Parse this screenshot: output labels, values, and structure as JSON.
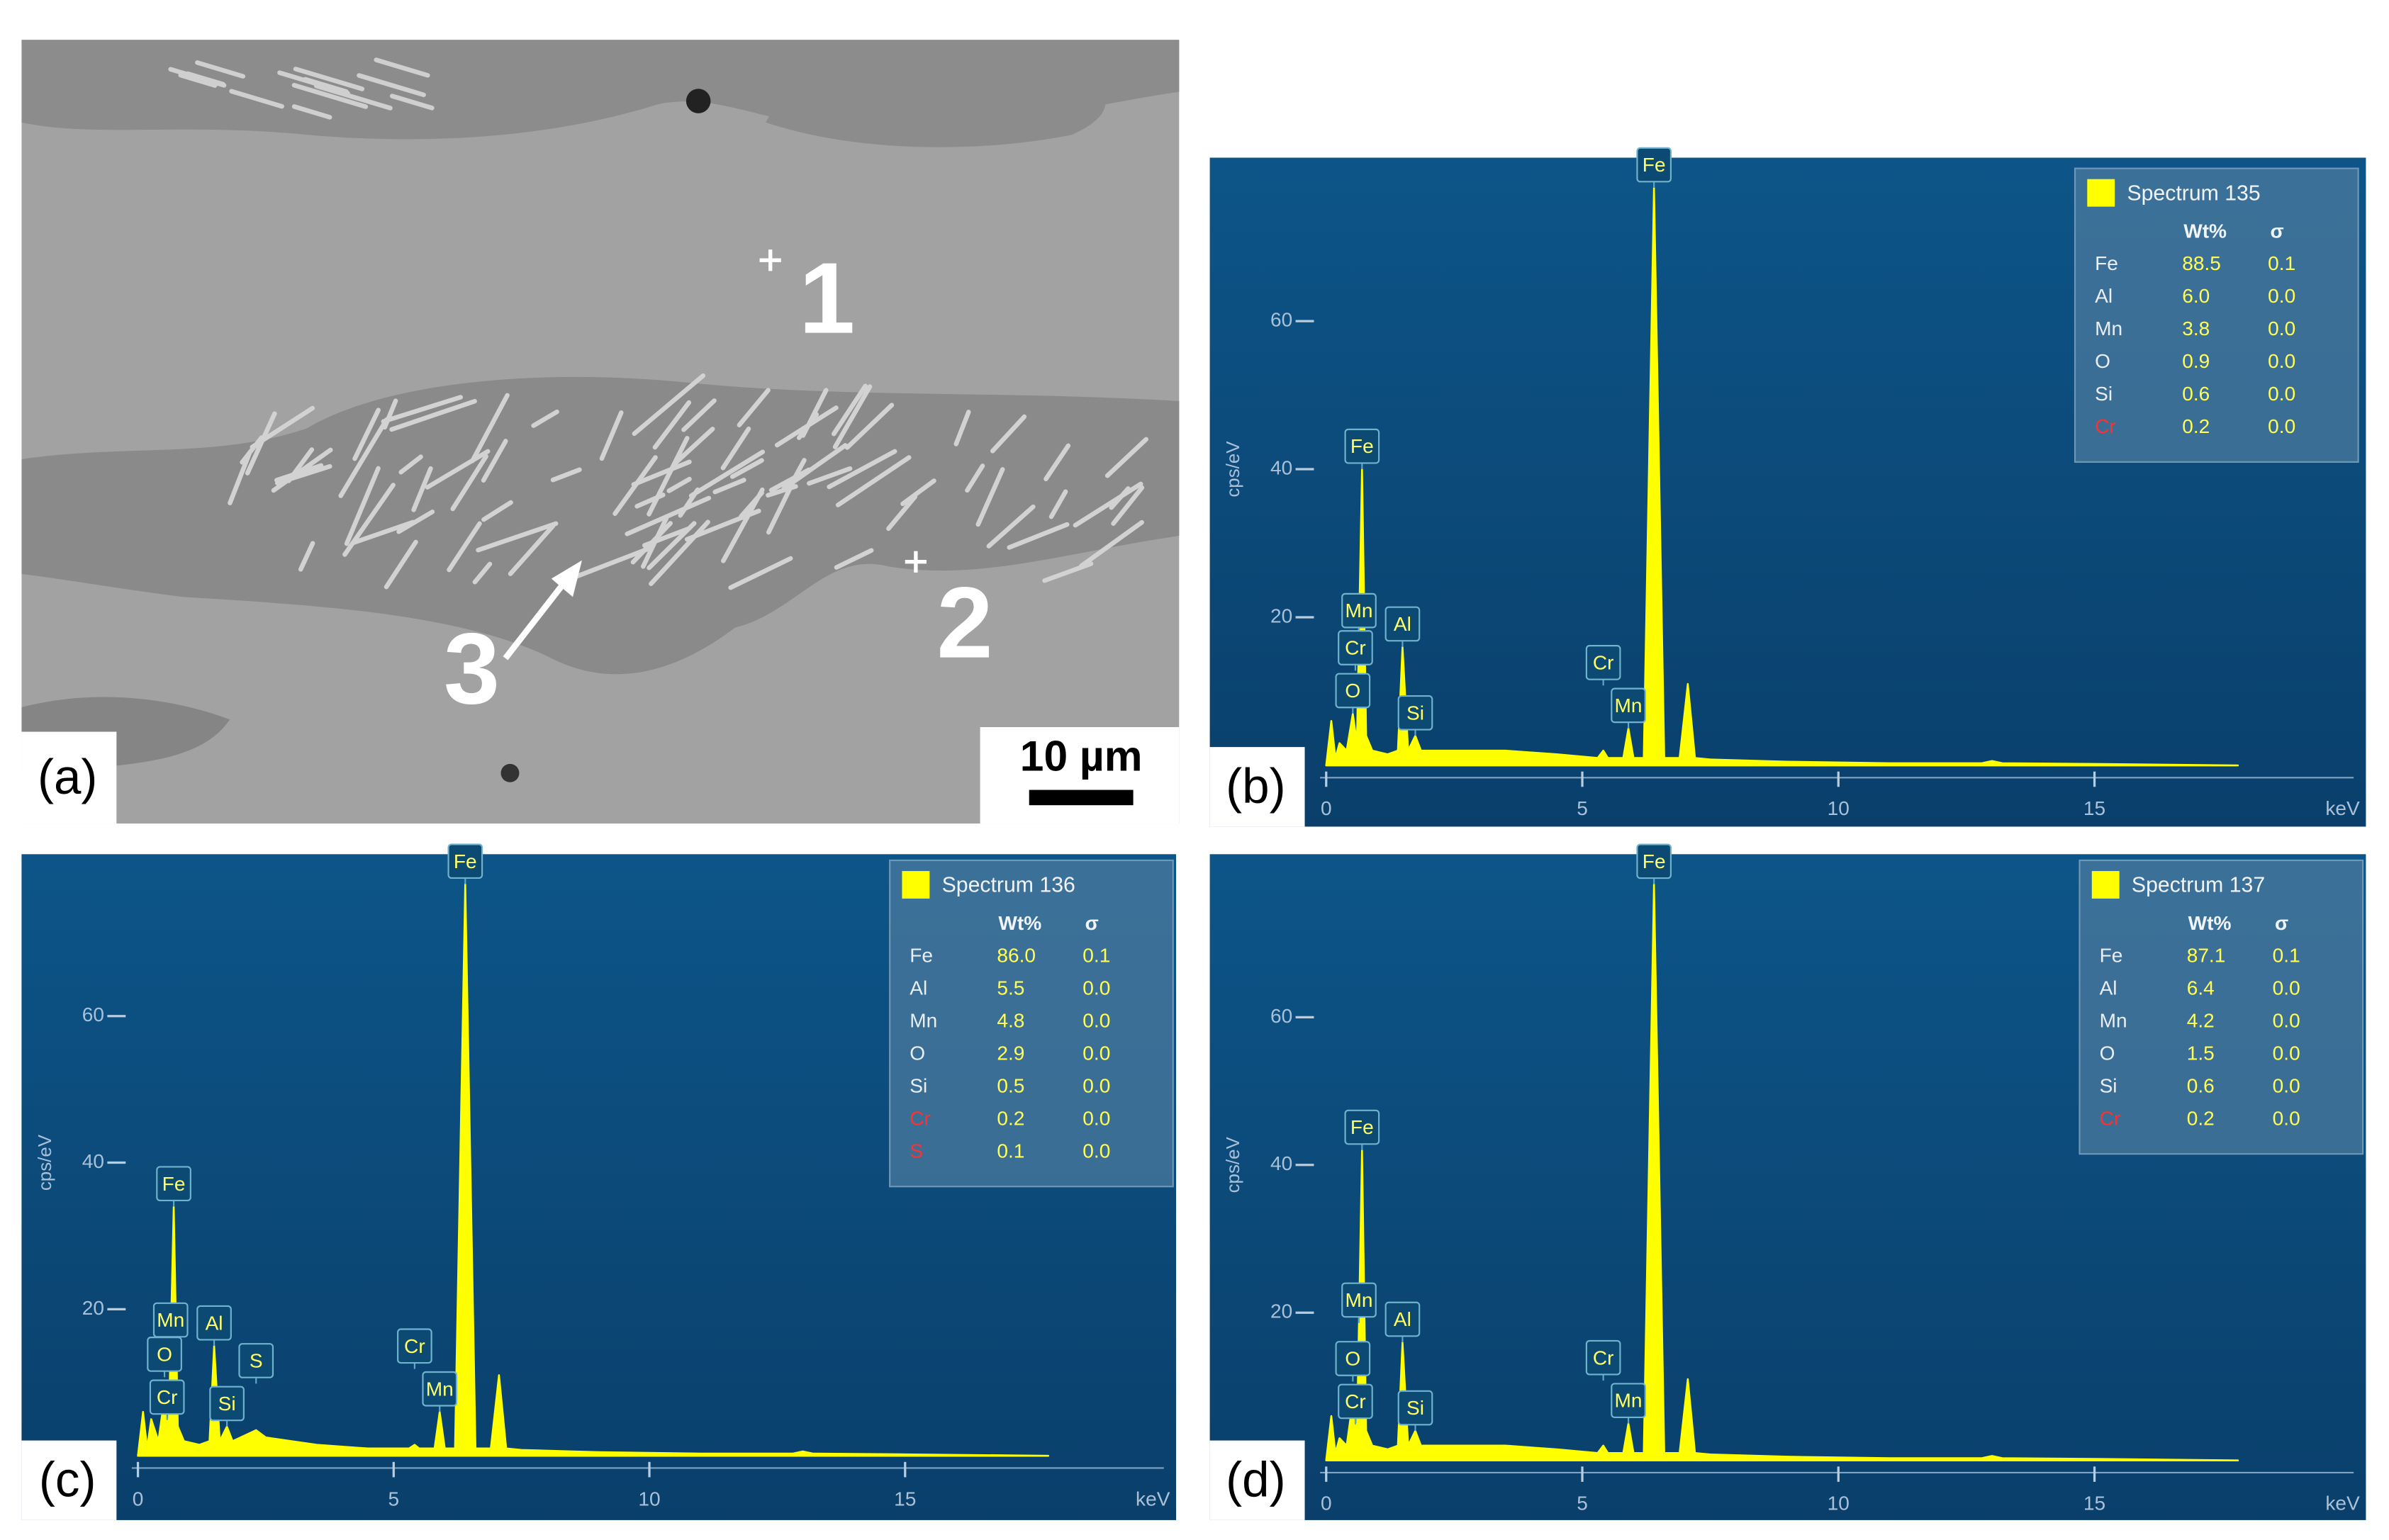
{
  "micrograph": {
    "panel_label": "(a)",
    "scale_bar": "10 µm",
    "points": [
      "1",
      "2",
      "3"
    ]
  },
  "chart_data": [
    {
      "type": "area",
      "panel_label": "(b)",
      "x_label": "keV",
      "y_label": "cps/eV",
      "x": [
        0,
        0.1,
        0.18,
        0.26,
        0.4,
        0.52,
        0.6,
        0.7,
        0.78,
        0.9,
        1.2,
        1.4,
        1.49,
        1.6,
        1.74,
        1.85,
        2.31,
        2.5,
        3.5,
        4.5,
        5.3,
        5.41,
        5.5,
        5.8,
        5.9,
        6.0,
        6.2,
        6.4,
        6.6,
        6.9,
        7.06,
        7.2,
        7.5,
        9,
        11,
        12.8,
        13,
        13.2,
        15,
        17.8
      ],
      "series": [
        {
          "name": "Spectrum 135",
          "color": "#ffff00",
          "values": [
            0,
            6,
            1,
            3,
            2,
            7,
            3,
            40,
            4,
            2,
            1.5,
            2,
            16,
            2,
            4,
            2,
            2,
            2,
            2,
            1.5,
            1,
            2,
            1,
            1,
            5,
            1,
            1,
            78,
            1,
            1,
            11,
            1,
            0.8,
            0.5,
            0.3,
            0.3,
            0.6,
            0.3,
            0.2,
            0
          ]
        }
      ],
      "xlim": [
        0,
        20
      ],
      "xticks": [
        0,
        5,
        10,
        15
      ],
      "ylim": [
        0,
        80
      ],
      "yticks": [
        20,
        40,
        60
      ],
      "peak_labels": [
        {
          "text": "Fe",
          "x": 6.4
        },
        {
          "text": "Fe",
          "x": 0.7
        },
        {
          "text": "Al",
          "x": 1.49
        },
        {
          "text": "Si",
          "x": 1.74
        },
        {
          "text": "Mn",
          "x": 5.9
        },
        {
          "text": "Cr",
          "x": 5.41
        },
        {
          "text": "Mn",
          "x": 0.64
        },
        {
          "text": "O",
          "x": 0.52
        },
        {
          "text": "Cr",
          "x": 0.57
        }
      ],
      "table": {
        "headers": [
          "Wt%",
          "σ"
        ],
        "rows": [
          {
            "element": "Fe",
            "wt": "88.5",
            "sigma": "0.1",
            "color": "#e8eef4"
          },
          {
            "element": "Al",
            "wt": "6.0",
            "sigma": "0.0",
            "color": "#e8eef4"
          },
          {
            "element": "Mn",
            "wt": "3.8",
            "sigma": "0.0",
            "color": "#e8eef4"
          },
          {
            "element": "O",
            "wt": "0.9",
            "sigma": "0.0",
            "color": "#e8eef4"
          },
          {
            "element": "Si",
            "wt": "0.6",
            "sigma": "0.0",
            "color": "#e8eef4"
          },
          {
            "element": "Cr",
            "wt": "0.2",
            "sigma": "0.0",
            "color": "#ff3030"
          }
        ]
      }
    },
    {
      "type": "area",
      "panel_label": "(c)",
      "x_label": "keV",
      "y_label": "cps/eV",
      "x": [
        0,
        0.1,
        0.18,
        0.26,
        0.4,
        0.52,
        0.6,
        0.7,
        0.78,
        0.9,
        1.2,
        1.4,
        1.49,
        1.6,
        1.74,
        1.85,
        2.31,
        2.5,
        3.5,
        4.5,
        5.3,
        5.41,
        5.5,
        5.8,
        5.9,
        6.0,
        6.2,
        6.4,
        6.6,
        6.9,
        7.06,
        7.2,
        7.5,
        9,
        11,
        12.8,
        13,
        13.2,
        15,
        17.8
      ],
      "series": [
        {
          "name": "Spectrum 136",
          "color": "#ffff00",
          "values": [
            0,
            6,
            1,
            5,
            2,
            8,
            3,
            34,
            4,
            2,
            1.5,
            2,
            15,
            2,
            4,
            2,
            3.5,
            2.5,
            1.5,
            1,
            1,
            1.5,
            1,
            1,
            6,
            1,
            1,
            78,
            1,
            1,
            11,
            1,
            0.8,
            0.5,
            0.3,
            0.3,
            0.6,
            0.3,
            0.2,
            0
          ]
        }
      ],
      "xlim": [
        0,
        20
      ],
      "xticks": [
        0,
        5,
        10,
        15
      ],
      "ylim": [
        0,
        80
      ],
      "yticks": [
        20,
        40,
        60
      ],
      "peak_labels": [
        {
          "text": "Fe",
          "x": 6.4
        },
        {
          "text": "Fe",
          "x": 0.7
        },
        {
          "text": "Al",
          "x": 1.49
        },
        {
          "text": "Si",
          "x": 1.74
        },
        {
          "text": "S",
          "x": 2.31
        },
        {
          "text": "Mn",
          "x": 5.9
        },
        {
          "text": "Cr",
          "x": 5.41
        },
        {
          "text": "Cr",
          "x": 0.57
        },
        {
          "text": "Mn",
          "x": 0.64
        },
        {
          "text": "O",
          "x": 0.52
        }
      ],
      "table": {
        "headers": [
          "Wt%",
          "σ"
        ],
        "rows": [
          {
            "element": "Fe",
            "wt": "86.0",
            "sigma": "0.1",
            "color": "#e8eef4"
          },
          {
            "element": "Al",
            "wt": "5.5",
            "sigma": "0.0",
            "color": "#e8eef4"
          },
          {
            "element": "Mn",
            "wt": "4.8",
            "sigma": "0.0",
            "color": "#e8eef4"
          },
          {
            "element": "O",
            "wt": "2.9",
            "sigma": "0.0",
            "color": "#e8eef4"
          },
          {
            "element": "Si",
            "wt": "0.5",
            "sigma": "0.0",
            "color": "#e8eef4"
          },
          {
            "element": "Cr",
            "wt": "0.2",
            "sigma": "0.0",
            "color": "#ff3030"
          },
          {
            "element": "S",
            "wt": "0.1",
            "sigma": "0.0",
            "color": "#ff3030"
          }
        ]
      }
    },
    {
      "type": "area",
      "panel_label": "(d)",
      "x_label": "keV",
      "y_label": "cps/eV",
      "x": [
        0,
        0.1,
        0.18,
        0.26,
        0.4,
        0.52,
        0.6,
        0.7,
        0.78,
        0.9,
        1.2,
        1.4,
        1.49,
        1.6,
        1.74,
        1.85,
        2.31,
        2.5,
        3.5,
        4.5,
        5.3,
        5.41,
        5.5,
        5.8,
        5.9,
        6.0,
        6.2,
        6.4,
        6.6,
        6.9,
        7.06,
        7.2,
        7.5,
        9,
        11,
        12.8,
        13,
        13.2,
        15,
        17.8
      ],
      "series": [
        {
          "name": "Spectrum 137",
          "color": "#ffff00",
          "values": [
            0,
            6,
            1,
            3,
            2,
            8,
            3,
            42,
            4,
            2,
            1.5,
            2,
            16,
            2,
            4,
            2,
            2,
            2,
            2,
            1.5,
            1,
            2,
            1,
            1,
            5,
            1,
            1,
            78,
            1,
            1,
            11,
            1,
            0.8,
            0.5,
            0.3,
            0.3,
            0.6,
            0.3,
            0.2,
            0
          ]
        }
      ],
      "xlim": [
        0,
        20
      ],
      "xticks": [
        0,
        5,
        10,
        15
      ],
      "ylim": [
        0,
        80
      ],
      "yticks": [
        20,
        40,
        60
      ],
      "peak_labels": [
        {
          "text": "Fe",
          "x": 6.4
        },
        {
          "text": "Fe",
          "x": 0.7
        },
        {
          "text": "Al",
          "x": 1.49
        },
        {
          "text": "Si",
          "x": 1.74
        },
        {
          "text": "Mn",
          "x": 5.9
        },
        {
          "text": "Cr",
          "x": 5.41
        },
        {
          "text": "Cr",
          "x": 0.57
        },
        {
          "text": "Mn",
          "x": 0.64
        },
        {
          "text": "O",
          "x": 0.52
        }
      ],
      "table": {
        "headers": [
          "Wt%",
          "σ"
        ],
        "rows": [
          {
            "element": "Fe",
            "wt": "87.1",
            "sigma": "0.1",
            "color": "#e8eef4"
          },
          {
            "element": "Al",
            "wt": "6.4",
            "sigma": "0.0",
            "color": "#e8eef4"
          },
          {
            "element": "Mn",
            "wt": "4.2",
            "sigma": "0.0",
            "color": "#e8eef4"
          },
          {
            "element": "O",
            "wt": "1.5",
            "sigma": "0.0",
            "color": "#e8eef4"
          },
          {
            "element": "Si",
            "wt": "0.6",
            "sigma": "0.0",
            "color": "#e8eef4"
          },
          {
            "element": "Cr",
            "wt": "0.2",
            "sigma": "0.0",
            "color": "#ff3030"
          }
        ]
      }
    }
  ]
}
